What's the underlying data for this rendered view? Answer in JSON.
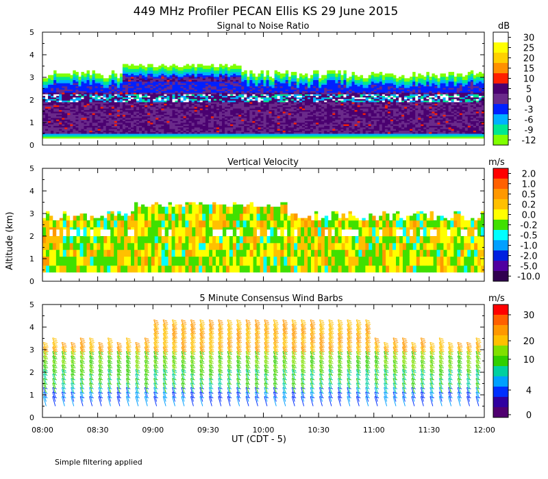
{
  "title": "449 MHz Profiler PECAN Ellis KS 29 June 2015",
  "ylabel": "Altitude (km)",
  "xlabel": "UT  (CDT - 5)",
  "footnote": "Simple filtering applied",
  "x_ticks": [
    "08:00",
    "08:30",
    "09:00",
    "09:30",
    "10:00",
    "10:30",
    "11:00",
    "11:30",
    "12:00"
  ],
  "y_ticks": [
    "0",
    "1",
    "2",
    "3",
    "4",
    "5"
  ],
  "chart_data": [
    {
      "type": "heatmap",
      "title": "Signal to Noise Ratio",
      "units": "dB",
      "x_range": [
        "08:00",
        "12:00"
      ],
      "ylim": [
        0,
        5
      ],
      "colorbar": {
        "labels": [
          "30",
          "25",
          "20",
          "15",
          "10",
          "5",
          "0",
          "-3",
          "-6",
          "-9",
          "-12"
        ],
        "colors": [
          "#ffffff",
          "#ffff00",
          "#ffd000",
          "#ff9000",
          "#ff2000",
          "#4a0070",
          "#6a2a8a",
          "#0020ff",
          "#00b0ff",
          "#00e890",
          "#80ff00"
        ]
      },
      "data_top_km": [
        2.9,
        3.6
      ],
      "data_bottom_km": 0.3
    },
    {
      "type": "heatmap",
      "title": "Vertical Velocity",
      "units": "m/s",
      "x_range": [
        "08:00",
        "12:00"
      ],
      "ylim": [
        0,
        5
      ],
      "colorbar": {
        "labels": [
          "2.0",
          "1.0",
          "0.5",
          "0.2",
          "0.0",
          "-0.2",
          "-0.5",
          "-1.0",
          "-2.0",
          "-5.0",
          "-10.0"
        ],
        "colors": [
          "#ff0000",
          "#ff6000",
          "#ff9800",
          "#ffc000",
          "#ffff00",
          "#40e000",
          "#00ffff",
          "#00a0ff",
          "#0020e0",
          "#5000a0",
          "#300050"
        ]
      },
      "data_top_km": [
        2.6,
        3.5
      ],
      "data_bottom_km": 0.4
    },
    {
      "type": "scatter",
      "title": "5 Minute Consensus Wind Barbs",
      "units": "m/s",
      "x_range": [
        "08:00",
        "12:00"
      ],
      "ylim": [
        0,
        5
      ],
      "colorbar": {
        "labels": [
          "30",
          "20",
          "10",
          "4",
          "0"
        ],
        "colors": [
          "#ff0000",
          "#ff6000",
          "#ff9800",
          "#ffc000",
          "#80e000",
          "#30d000",
          "#00d0a0",
          "#00a0ff",
          "#0030ff",
          "#3000a0",
          "#500070"
        ]
      },
      "barb_interval_min": 5,
      "lower_levels_km": [
        0.5,
        3.0
      ]
    }
  ]
}
